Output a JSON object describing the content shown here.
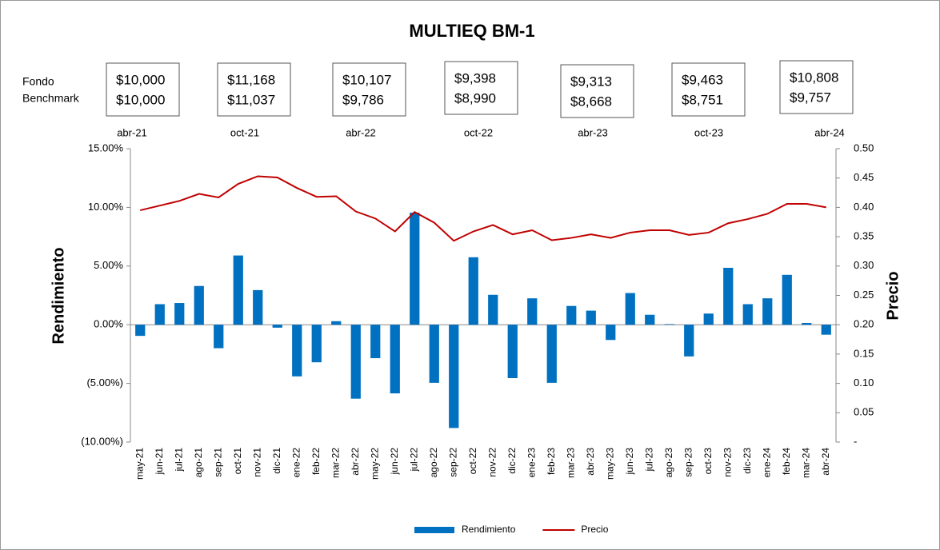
{
  "chart_data": {
    "type": "bar-line",
    "title": "MULTIEQ BM-1",
    "ylabel": "Rendimiento",
    "y2label": "Precio",
    "snapshot_row_labels": [
      "Fondo",
      "Benchmark"
    ],
    "snapshots": [
      {
        "date": "abr-21",
        "fondo": "$10,000",
        "benchmark": "$10,000"
      },
      {
        "date": "oct-21",
        "fondo": "$11,168",
        "benchmark": "$11,037"
      },
      {
        "date": "abr-22",
        "fondo": "$10,107",
        "benchmark": "$9,786"
      },
      {
        "date": "oct-22",
        "fondo": "$9,398",
        "benchmark": "$8,990"
      },
      {
        "date": "abr-23",
        "fondo": "$9,313",
        "benchmark": "$8,668"
      },
      {
        "date": "oct-23",
        "fondo": "$9,463",
        "benchmark": "$8,751"
      },
      {
        "date": "abr-24",
        "fondo": "$10,808",
        "benchmark": "$9,757"
      }
    ],
    "categories": [
      "may-21",
      "jun-21",
      "jul-21",
      "ago-21",
      "sep-21",
      "oct-21",
      "nov-21",
      "dic-21",
      "ene-22",
      "feb-22",
      "mar-22",
      "abr-22",
      "may-22",
      "jun-22",
      "jul-22",
      "ago-22",
      "sep-22",
      "oct-22",
      "nov-22",
      "dic-22",
      "ene-23",
      "feb-23",
      "mar-23",
      "abr-23",
      "may-23",
      "jun-23",
      "jul-23",
      "ago-23",
      "sep-23",
      "oct-23",
      "nov-23",
      "dic-23",
      "ene-24",
      "feb-24",
      "mar-24",
      "abr-24"
    ],
    "series": [
      {
        "name": "Rendimiento",
        "color": "#0070c0",
        "kind": "bar",
        "values": [
          -0.95,
          1.75,
          1.85,
          3.3,
          -2.0,
          5.9,
          2.95,
          -0.25,
          -4.4,
          -3.2,
          0.3,
          -6.3,
          -2.85,
          -5.85,
          9.55,
          -4.95,
          -8.8,
          5.75,
          2.55,
          -4.55,
          2.25,
          -4.95,
          1.6,
          1.2,
          -1.3,
          2.7,
          0.85,
          0.05,
          -2.7,
          0.95,
          4.85,
          1.75,
          2.25,
          4.25,
          0.15,
          -0.85
        ]
      },
      {
        "name": "Precio",
        "color": "#c00000",
        "kind": "line",
        "axis": "y2",
        "values": [
          0.395,
          0.403,
          0.411,
          0.423,
          0.417,
          0.44,
          0.453,
          0.451,
          0.433,
          0.418,
          0.419,
          0.393,
          0.381,
          0.359,
          0.392,
          0.374,
          0.343,
          0.359,
          0.37,
          0.354,
          0.361,
          0.344,
          0.348,
          0.354,
          0.348,
          0.357,
          0.361,
          0.361,
          0.353,
          0.357,
          0.373,
          0.38,
          0.389,
          0.406,
          0.406,
          0.4
        ]
      }
    ],
    "ylim": [
      -10,
      15
    ],
    "yticks": [
      {
        "value": -10,
        "label": "(10.00%)"
      },
      {
        "value": -5,
        "label": "(5.00%)"
      },
      {
        "value": 0,
        "label": "0.00%"
      },
      {
        "value": 5,
        "label": "5.00%"
      },
      {
        "value": 10,
        "label": "10.00%"
      },
      {
        "value": 15,
        "label": "15.00%"
      }
    ],
    "negative_tick_color": "#e00000",
    "y2lim": [
      0,
      0.5
    ],
    "y2ticks": [
      {
        "value": 0,
        "label": "-"
      },
      {
        "value": 0.05,
        "label": "0.05"
      },
      {
        "value": 0.1,
        "label": "0.10"
      },
      {
        "value": 0.15,
        "label": "0.15"
      },
      {
        "value": 0.2,
        "label": "0.20"
      },
      {
        "value": 0.25,
        "label": "0.25"
      },
      {
        "value": 0.3,
        "label": "0.30"
      },
      {
        "value": 0.35,
        "label": "0.35"
      },
      {
        "value": 0.4,
        "label": "0.40"
      },
      {
        "value": 0.45,
        "label": "0.45"
      },
      {
        "value": 0.5,
        "label": "0.50"
      }
    ],
    "legend": "bottom"
  }
}
